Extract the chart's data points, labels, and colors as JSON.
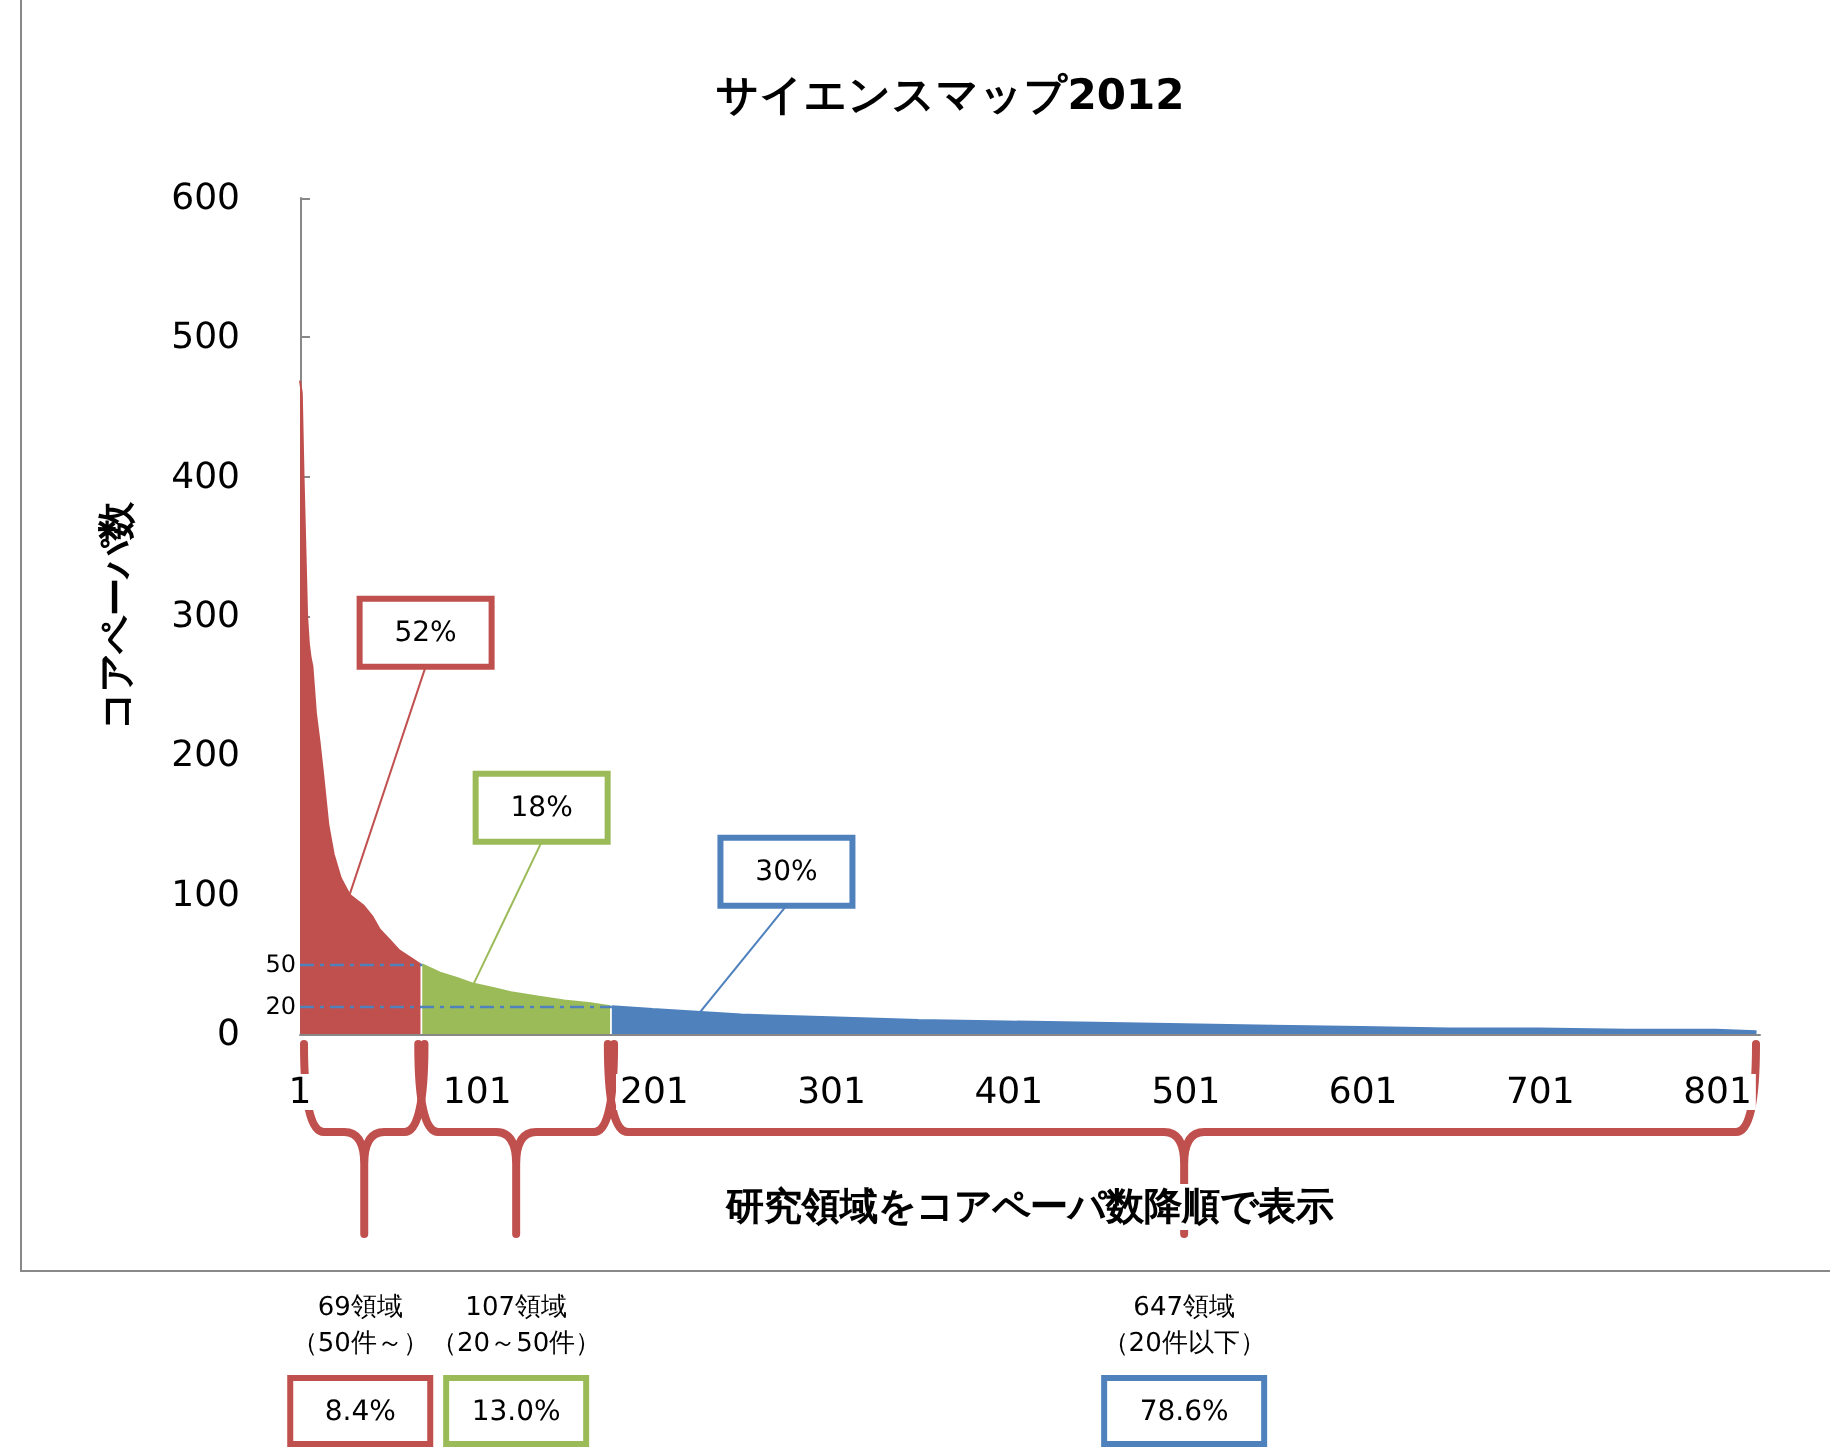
{
  "chart_data": {
    "type": "area",
    "title": "サイエンスマップ2012",
    "xlabel": "研究領域をコアペーパ数降順で表示",
    "ylabel": "コアペーパ数",
    "xlim": [
      1,
      825
    ],
    "xticks": [
      1,
      101,
      201,
      301,
      401,
      501,
      601,
      701,
      801
    ],
    "ylim": [
      0,
      600
    ],
    "yticks": [
      0,
      100,
      200,
      300,
      400,
      500,
      600
    ],
    "grid": false,
    "series": [
      {
        "color": "#c0504d",
        "x": [
          1,
          2,
          3,
          4,
          5,
          6,
          7,
          8,
          10,
          12,
          14,
          17,
          20,
          24,
          29,
          33,
          37,
          42,
          46,
          52,
          57,
          63,
          69
        ],
        "values": [
          469,
          460,
          400,
          350,
          300,
          280,
          270,
          264,
          230,
          210,
          187,
          150,
          129,
          112,
          100,
          96,
          92,
          84,
          75,
          67,
          60,
          55,
          50
        ]
      },
      {
        "color": "#9bbb59",
        "x": [
          70,
          80,
          90,
          99,
          110,
          120,
          135,
          150,
          165,
          176
        ],
        "values": [
          50,
          44,
          40,
          36,
          33,
          30,
          27,
          24,
          22,
          20
        ]
      },
      {
        "color": "#4f81bd",
        "x": [
          177,
          200,
          250,
          300,
          350,
          400,
          450,
          500,
          550,
          600,
          650,
          700,
          750,
          800,
          823
        ],
        "values": [
          20,
          18,
          14,
          12,
          10,
          9,
          8,
          7,
          6,
          5,
          4,
          4,
          3,
          3,
          2
        ]
      }
    ],
    "ref_lines": [
      {
        "axis": "y",
        "value": 50,
        "label": "50",
        "color": "#4f81bd",
        "line_style": "dashed"
      },
      {
        "axis": "y",
        "value": 20,
        "label": "20",
        "color": "#4f81bd",
        "line_style": "dashed"
      }
    ],
    "annotations": [
      {
        "text": "52%",
        "x": 29,
        "y": 100
      },
      {
        "text": "18%",
        "x": 99,
        "y": 36
      },
      {
        "text": "30%",
        "x": 227,
        "y": 16
      },
      "69領域",
      "107領域",
      "647領域",
      "（50件～）",
      "（20～50件）",
      "（20件以下）",
      "8.4%",
      "13.0%",
      "78.6%"
    ]
  }
}
